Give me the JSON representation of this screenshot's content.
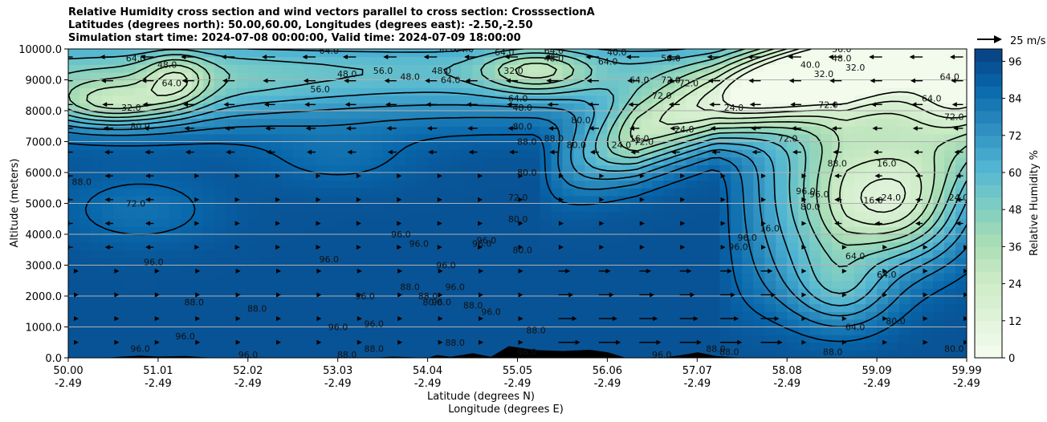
{
  "chart_data": {
    "type": "heatmap",
    "title_lines": [
      "Relative Humidity cross section and wind vectors parallel to cross section: CrosssectionA",
      "Latitudes (degrees north): 50.00,60.00, Longitudes (degrees east): -2.50,-2.50",
      "Simulation start time: 2024-07-08 00:00:00, Valid time: 2024-07-09 18:00:00"
    ],
    "ylabel": "Altitude (meters)",
    "xlabel_lat": "Latitude (degrees N)",
    "xlabel_lon": "Longitude (degrees E)",
    "ylim": [
      0,
      10000
    ],
    "y_ticks": [
      "0.0",
      "1000.0",
      "2000.0",
      "3000.0",
      "4000.0",
      "5000.0",
      "6000.0",
      "7000.0",
      "8000.0",
      "9000.0",
      "10000.0"
    ],
    "y_grid": true,
    "x_ticks_lat": [
      "50.00",
      "51.01",
      "52.02",
      "53.03",
      "54.04",
      "55.05",
      "56.06",
      "57.07",
      "58.08",
      "59.09",
      "59.99"
    ],
    "x_ticks_lon": [
      "-2.49",
      "-2.49",
      "-2.49",
      "-2.49",
      "-2.49",
      "-2.49",
      "-2.49",
      "-2.49",
      "-2.49",
      "-2.49",
      "-2.49"
    ],
    "x_range": [
      50.0,
      59.99
    ],
    "colorbar": {
      "label": "Relative Humidity %",
      "ticks": [
        "0",
        "12",
        "24",
        "36",
        "48",
        "60",
        "72",
        "84",
        "96"
      ],
      "range": [
        0,
        100
      ],
      "colormap": "GnBu",
      "colors": [
        "#f7fcf0",
        "#e0f3db",
        "#ccebc5",
        "#a8ddb5",
        "#7bccc4",
        "#4eb3d3",
        "#2b8cbe",
        "#0868ac",
        "#084081"
      ]
    },
    "quiver_key": "25 m/s",
    "contour_levels": [
      8,
      16,
      24,
      32,
      40,
      48,
      56,
      64,
      72,
      80,
      88,
      96
    ],
    "contour_labels": [
      {
        "text": "64.0",
        "lat": 50.75,
        "alt": 9700
      },
      {
        "text": "48.0",
        "lat": 51.1,
        "alt": 9500
      },
      {
        "text": "64.0",
        "lat": 51.15,
        "alt": 8900
      },
      {
        "text": "32.0",
        "lat": 50.7,
        "alt": 8100
      },
      {
        "text": "80.0",
        "lat": 50.8,
        "alt": 7500
      },
      {
        "text": "88.0",
        "lat": 50.15,
        "alt": 5700
      },
      {
        "text": "72.0",
        "lat": 50.75,
        "alt": 5000
      },
      {
        "text": "96.0",
        "lat": 50.95,
        "alt": 3100
      },
      {
        "text": "88.0",
        "lat": 51.4,
        "alt": 1800
      },
      {
        "text": "96.0",
        "lat": 51.3,
        "alt": 700
      },
      {
        "text": "96.0",
        "lat": 50.8,
        "alt": 300
      },
      {
        "text": "88.0",
        "lat": 52.1,
        "alt": 1600
      },
      {
        "text": "96.0",
        "lat": 52.0,
        "alt": 100
      },
      {
        "text": "56.0",
        "lat": 52.8,
        "alt": 8700
      },
      {
        "text": "64.0",
        "lat": 52.9,
        "alt": 9950
      },
      {
        "text": "48.0",
        "lat": 53.1,
        "alt": 9200
      },
      {
        "text": "96.0",
        "lat": 52.9,
        "alt": 3200
      },
      {
        "text": "96.0",
        "lat": 53.0,
        "alt": 1000
      },
      {
        "text": "88.0",
        "lat": 53.1,
        "alt": 100
      },
      {
        "text": "56.0",
        "lat": 53.5,
        "alt": 9300
      },
      {
        "text": "48.0",
        "lat": 53.8,
        "alt": 9100
      },
      {
        "text": "96.0",
        "lat": 53.3,
        "alt": 2000
      },
      {
        "text": "96.0",
        "lat": 53.4,
        "alt": 1100
      },
      {
        "text": "88.0",
        "lat": 53.4,
        "alt": 300
      },
      {
        "text": "96.0",
        "lat": 53.7,
        "alt": 4000
      },
      {
        "text": "96.0",
        "lat": 53.9,
        "alt": 3700
      },
      {
        "text": "88.0",
        "lat": 53.8,
        "alt": 2300
      },
      {
        "text": "88.0",
        "lat": 54.0,
        "alt": 2000
      },
      {
        "text": "48.0",
        "lat": 54.15,
        "alt": 9300
      },
      {
        "text": "64.0",
        "lat": 54.25,
        "alt": 9000
      },
      {
        "text": "56.0",
        "lat": 54.2,
        "alt": 10000
      },
      {
        "text": "64.0",
        "lat": 54.4,
        "alt": 10000
      },
      {
        "text": "96.0",
        "lat": 54.2,
        "alt": 3000
      },
      {
        "text": "80.0",
        "lat": 54.05,
        "alt": 1800
      },
      {
        "text": "96.0",
        "lat": 54.15,
        "alt": 1800
      },
      {
        "text": "88.0",
        "lat": 54.5,
        "alt": 1700
      },
      {
        "text": "88.0",
        "lat": 54.3,
        "alt": 500
      },
      {
        "text": "96.0",
        "lat": 54.6,
        "alt": 3700
      },
      {
        "text": "96.0",
        "lat": 54.7,
        "alt": 1500
      },
      {
        "text": "96.0",
        "lat": 54.3,
        "alt": 2300
      },
      {
        "text": "32.0",
        "lat": 54.95,
        "alt": 9300
      },
      {
        "text": "64.0",
        "lat": 54.85,
        "alt": 9900
      },
      {
        "text": "64.0",
        "lat": 55.0,
        "alt": 8400
      },
      {
        "text": "48.0",
        "lat": 55.05,
        "alt": 8100
      },
      {
        "text": "64.0",
        "lat": 55.4,
        "alt": 9950
      },
      {
        "text": "48.0",
        "lat": 55.4,
        "alt": 9700
      },
      {
        "text": "80.0",
        "lat": 55.05,
        "alt": 7500
      },
      {
        "text": "88.0",
        "lat": 55.1,
        "alt": 7000
      },
      {
        "text": "88.0",
        "lat": 55.4,
        "alt": 7100
      },
      {
        "text": "80.0",
        "lat": 55.7,
        "alt": 7700
      },
      {
        "text": "80.0",
        "lat": 55.65,
        "alt": 6900
      },
      {
        "text": "80.0",
        "lat": 55.1,
        "alt": 6000
      },
      {
        "text": "72.0",
        "lat": 55.0,
        "alt": 5200
      },
      {
        "text": "80.0",
        "lat": 55.0,
        "alt": 4500
      },
      {
        "text": "80.0",
        "lat": 55.05,
        "alt": 3500
      },
      {
        "text": "96.0",
        "lat": 54.65,
        "alt": 3800
      },
      {
        "text": "88.0",
        "lat": 55.2,
        "alt": 900
      },
      {
        "text": "96.0",
        "lat": 55.1,
        "alt": 200
      },
      {
        "text": "40.0",
        "lat": 56.1,
        "alt": 9900
      },
      {
        "text": "64.0",
        "lat": 56.0,
        "alt": 9600
      },
      {
        "text": "56.0",
        "lat": 56.7,
        "alt": 9700
      },
      {
        "text": "64.0",
        "lat": 56.35,
        "alt": 9000
      },
      {
        "text": "72.0",
        "lat": 56.6,
        "alt": 8500
      },
      {
        "text": "72.0",
        "lat": 56.7,
        "alt": 9000
      },
      {
        "text": "72.0",
        "lat": 56.9,
        "alt": 8900
      },
      {
        "text": "72.0",
        "lat": 56.4,
        "alt": 7000
      },
      {
        "text": "24.0",
        "lat": 56.15,
        "alt": 6900
      },
      {
        "text": "16.0",
        "lat": 56.35,
        "alt": 7100
      },
      {
        "text": "24.0",
        "lat": 56.85,
        "alt": 7400
      },
      {
        "text": "24.0",
        "lat": 57.4,
        "alt": 8100
      },
      {
        "text": "96.0",
        "lat": 56.6,
        "alt": 100
      },
      {
        "text": "88.0",
        "lat": 57.2,
        "alt": 300
      },
      {
        "text": "96.0",
        "lat": 57.45,
        "alt": 3600
      },
      {
        "text": "96.0",
        "lat": 57.55,
        "alt": 3900
      },
      {
        "text": "16.0",
        "lat": 57.8,
        "alt": 4200
      },
      {
        "text": "88.0",
        "lat": 57.35,
        "alt": 200
      },
      {
        "text": "40.0",
        "lat": 58.25,
        "alt": 9500
      },
      {
        "text": "48.0",
        "lat": 58.6,
        "alt": 9700
      },
      {
        "text": "32.0",
        "lat": 58.4,
        "alt": 9200
      },
      {
        "text": "56.0",
        "lat": 58.6,
        "alt": 10000
      },
      {
        "text": "32.0",
        "lat": 58.75,
        "alt": 9400
      },
      {
        "text": "72.0",
        "lat": 58.45,
        "alt": 8200
      },
      {
        "text": "72.0",
        "lat": 58.0,
        "alt": 7100
      },
      {
        "text": "88.0",
        "lat": 58.55,
        "alt": 6300
      },
      {
        "text": "96.0",
        "lat": 58.2,
        "alt": 5400
      },
      {
        "text": "96.0",
        "lat": 58.35,
        "alt": 5300
      },
      {
        "text": "80.0",
        "lat": 58.25,
        "alt": 4900
      },
      {
        "text": "16.0",
        "lat": 59.1,
        "alt": 6300
      },
      {
        "text": "16.0",
        "lat": 58.95,
        "alt": 5100
      },
      {
        "text": "24.0",
        "lat": 59.15,
        "alt": 5200
      },
      {
        "text": "64.0",
        "lat": 58.75,
        "alt": 3300
      },
      {
        "text": "64.0",
        "lat": 59.1,
        "alt": 2700
      },
      {
        "text": "64.0",
        "lat": 58.75,
        "alt": 1000
      },
      {
        "text": "88.0",
        "lat": 58.5,
        "alt": 200
      },
      {
        "text": "80.0",
        "lat": 59.2,
        "alt": 1200
      },
      {
        "text": "80.0",
        "lat": 59.85,
        "alt": 300
      },
      {
        "text": "64.0",
        "lat": 59.6,
        "alt": 8400
      },
      {
        "text": "64.0",
        "lat": 59.8,
        "alt": 9100
      },
      {
        "text": "24.0",
        "lat": 59.9,
        "alt": 5200
      },
      {
        "text": "72.0",
        "lat": 59.85,
        "alt": 7800
      }
    ]
  }
}
